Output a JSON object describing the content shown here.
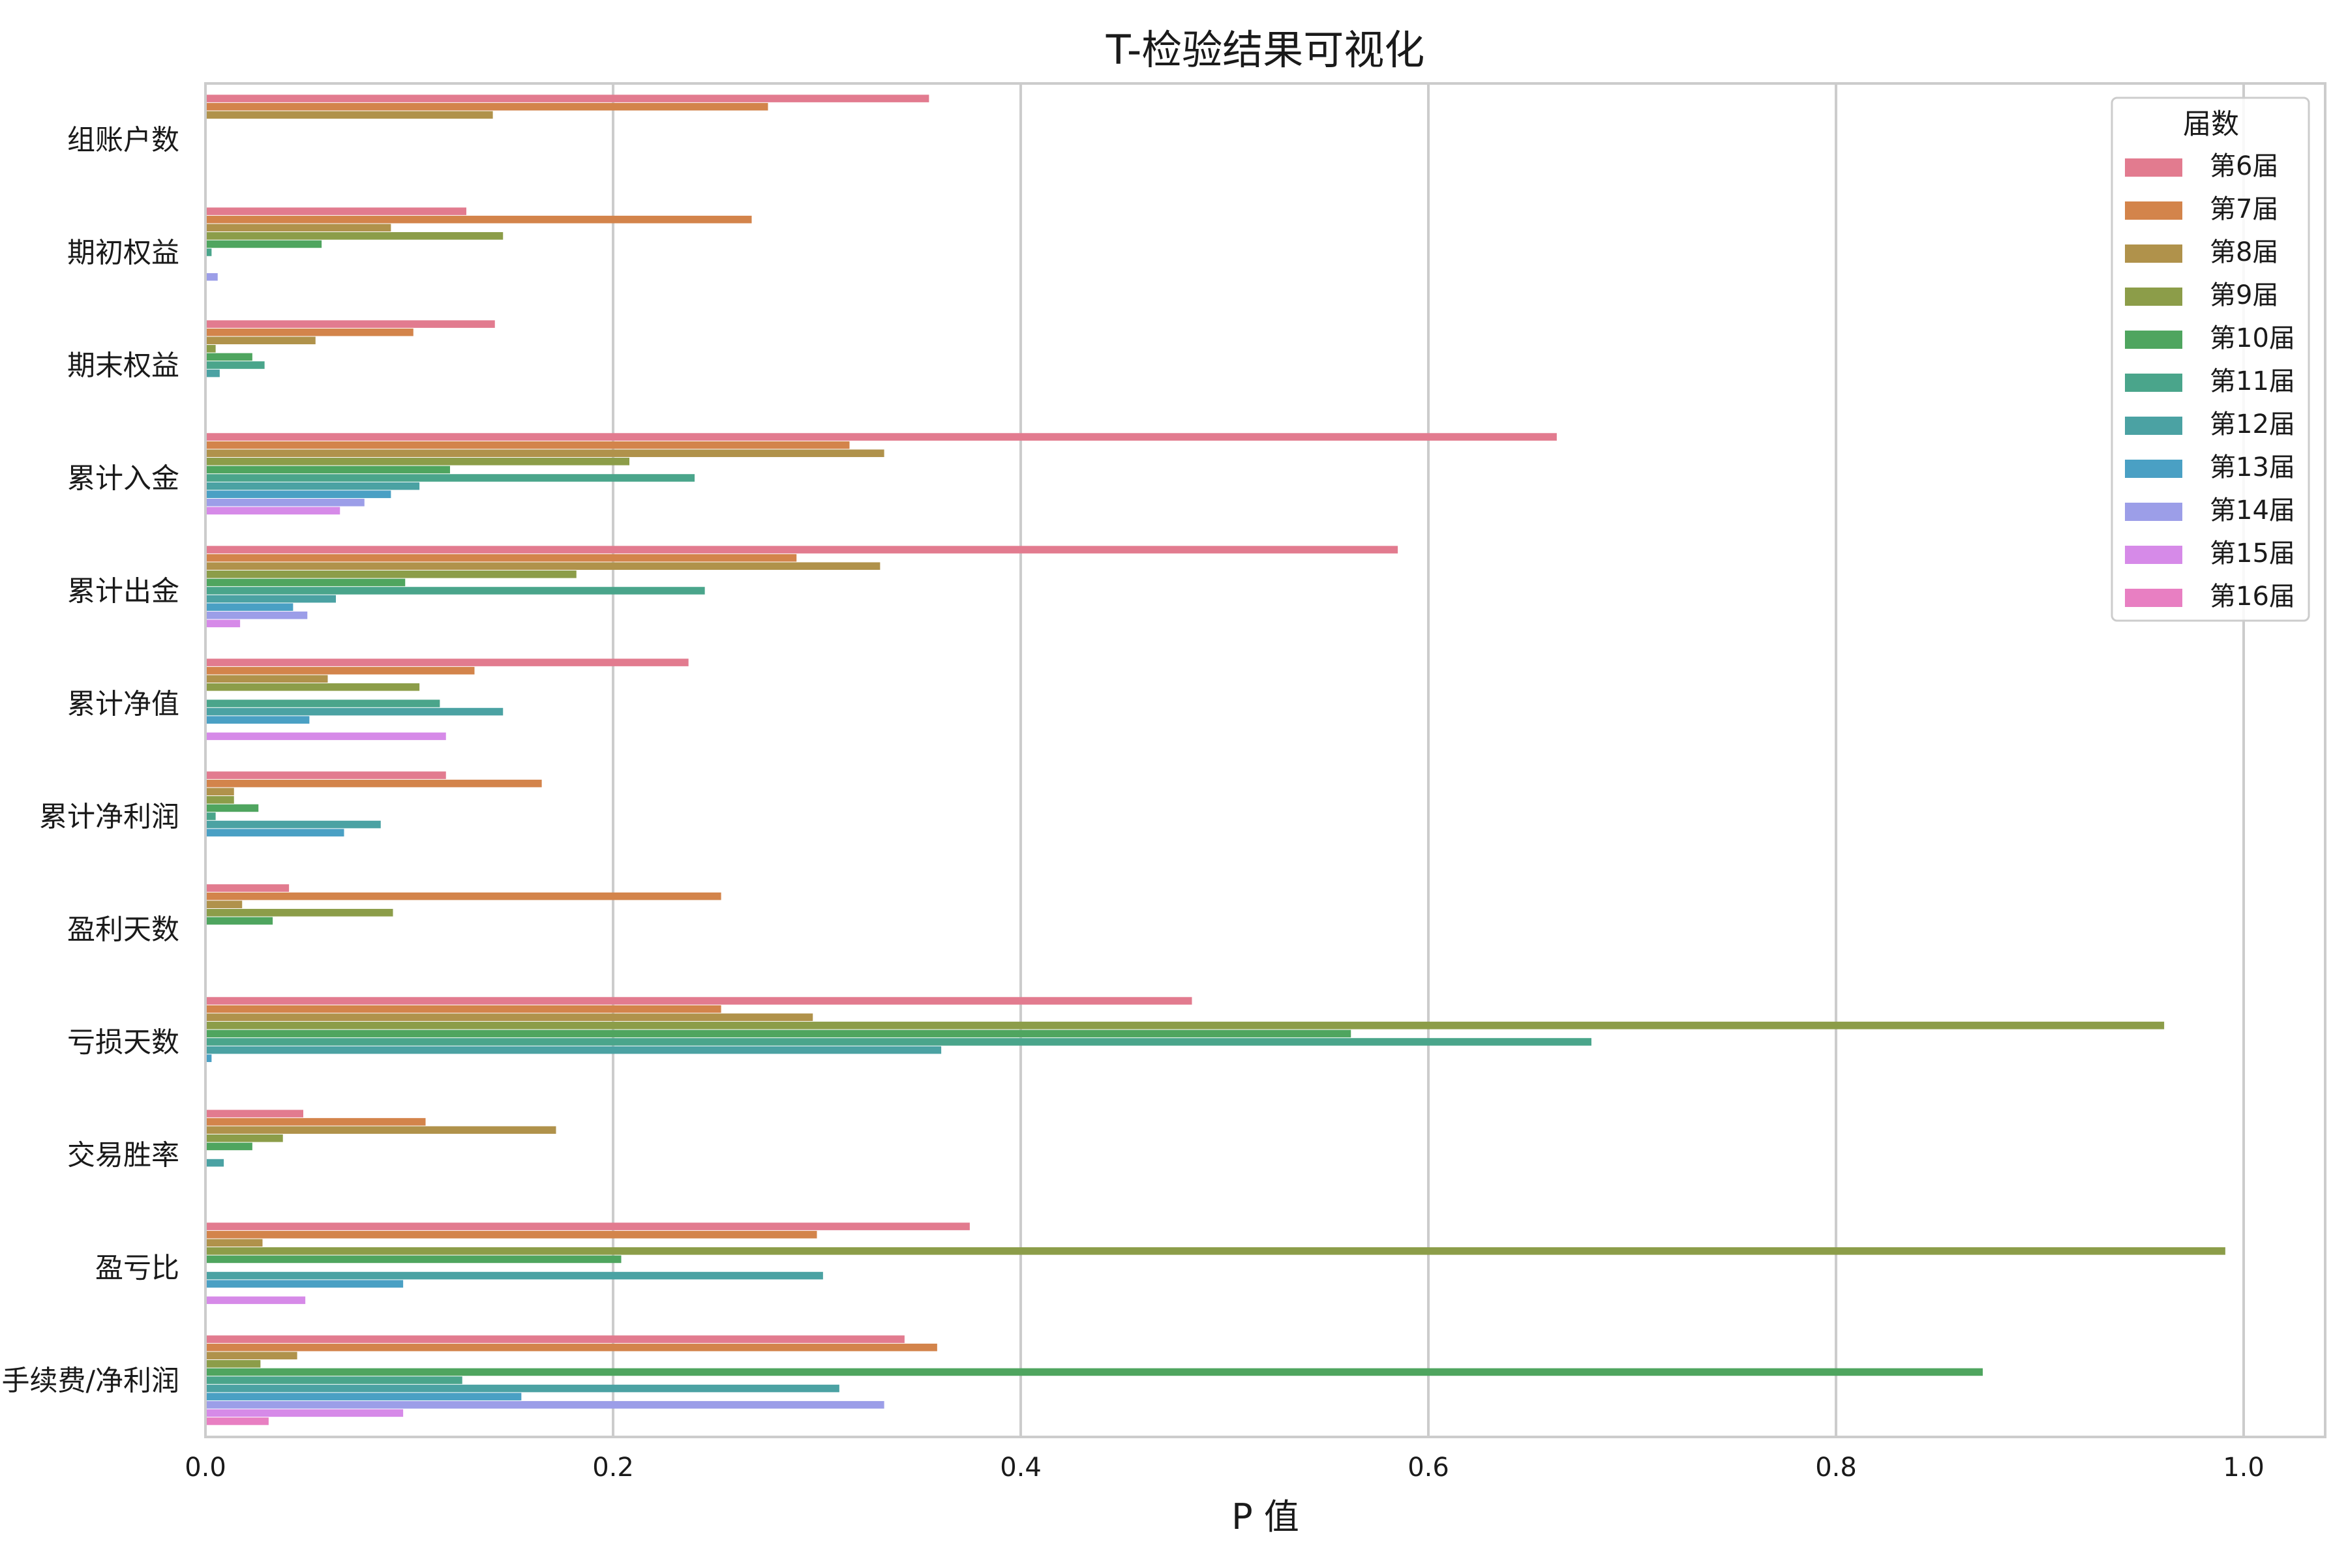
{
  "chart_data": {
    "type": "bar",
    "orientation": "horizontal",
    "title": "T-检验结果可视化",
    "xlabel": "P 值",
    "ylabel": "",
    "xlim": [
      0,
      1.04
    ],
    "xticks": [
      "0.0",
      "0.2",
      "0.4",
      "0.6",
      "0.8",
      "1.0"
    ],
    "grid": "vertical",
    "legend_title": "届数",
    "legend_position": "top-right",
    "categories": [
      "组账户数",
      "期初权益",
      "期末权益",
      "累计入金",
      "累计出金",
      "累计净值",
      "累计净利润",
      "盈利天数",
      "亏损天数",
      "交易胜率",
      "盈亏比",
      "手续费/净利润"
    ],
    "series": [
      {
        "name": "第6届",
        "color": "#e27b8f",
        "values": [
          0.355,
          0.128,
          0.142,
          0.663,
          0.585,
          0.237,
          0.118,
          0.041,
          0.484,
          0.048,
          0.375,
          0.343
        ]
      },
      {
        "name": "第7届",
        "color": "#d3844b",
        "values": [
          0.276,
          0.268,
          0.102,
          0.316,
          0.29,
          0.132,
          0.165,
          0.253,
          0.253,
          0.108,
          0.3,
          0.359
        ]
      },
      {
        "name": "第8届",
        "color": "#b0924b",
        "values": [
          0.141,
          0.091,
          0.054,
          0.333,
          0.331,
          0.06,
          0.014,
          0.018,
          0.298,
          0.172,
          0.028,
          0.045
        ]
      },
      {
        "name": "第9届",
        "color": "#8c9d49",
        "values": [
          0,
          0.146,
          0.005,
          0.208,
          0.182,
          0.105,
          0.014,
          0.092,
          0.961,
          0.038,
          0.991,
          0.027
        ]
      },
      {
        "name": "第10届",
        "color": "#4fa55f",
        "values": [
          0,
          0.057,
          0.023,
          0.12,
          0.098,
          0,
          0.026,
          0.033,
          0.562,
          0.023,
          0.204,
          0.872
        ]
      },
      {
        "name": "第11届",
        "color": "#4aa58b",
        "values": [
          0,
          0.003,
          0.029,
          0.24,
          0.245,
          0.115,
          0.005,
          0,
          0.68,
          0,
          0,
          0.126
        ]
      },
      {
        "name": "第12届",
        "color": "#4ba2a3",
        "values": [
          0,
          0,
          0.007,
          0.105,
          0.064,
          0.146,
          0.086,
          0,
          0.361,
          0.009,
          0.303,
          0.311
        ]
      },
      {
        "name": "第13届",
        "color": "#4aa0c4",
        "values": [
          0,
          0,
          0,
          0.091,
          0.043,
          0.051,
          0.068,
          0,
          0.003,
          0,
          0.097,
          0.155
        ]
      },
      {
        "name": "第14届",
        "color": "#9c9ee8",
        "values": [
          0,
          0.006,
          0,
          0.078,
          0.05,
          0,
          0,
          0,
          0,
          0,
          0,
          0.333
        ]
      },
      {
        "name": "第15届",
        "color": "#d68ae8",
        "values": [
          0,
          0,
          0,
          0.066,
          0.017,
          0.118,
          0,
          0,
          0,
          0,
          0.049,
          0.097
        ]
      },
      {
        "name": "第16届",
        "color": "#e87fc2",
        "values": [
          0,
          0,
          0,
          0,
          0,
          0,
          0,
          0,
          0,
          0,
          0,
          0.031
        ]
      }
    ]
  }
}
